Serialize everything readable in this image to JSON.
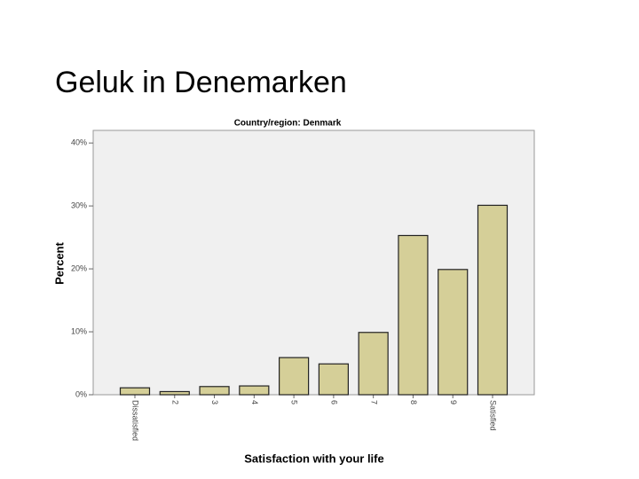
{
  "slide_title": "Geluk in Denemarken",
  "chart_data": {
    "type": "bar",
    "title": "Country/region: Denmark",
    "x_label": "Satisfaction with your life",
    "y_label": "Percent",
    "categories": [
      "Dissatisfied",
      "2",
      "3",
      "4",
      "5",
      "6",
      "7",
      "8",
      "9",
      "Satisfied"
    ],
    "values": [
      1.1,
      0.5,
      1.3,
      1.4,
      5.9,
      4.9,
      9.9,
      25.3,
      19.9,
      30.1
    ],
    "color": "#d5cf98",
    "ylim": [
      0,
      42
    ],
    "yticks": [
      {
        "value": 0,
        "label": "0%"
      },
      {
        "value": 10,
        "label": "10%"
      },
      {
        "value": 20,
        "label": "20%"
      },
      {
        "value": 30,
        "label": "30%"
      },
      {
        "value": 40,
        "label": "40%"
      }
    ],
    "grid": false
  }
}
